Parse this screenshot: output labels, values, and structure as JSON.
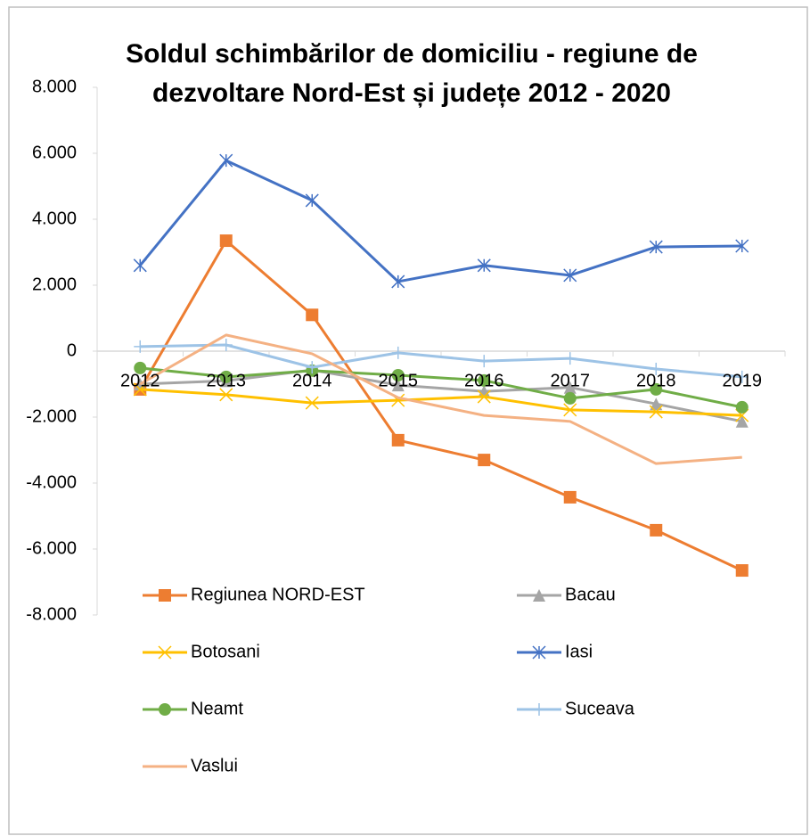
{
  "chart_data": {
    "type": "line",
    "title": [
      "Soldul schimbărilor de domiciliu - regiune de",
      "dezvoltare Nord-Est și județe 2012 - 2020"
    ],
    "categories": [
      "2012",
      "2013",
      "2014",
      "2015",
      "2016",
      "2017",
      "2018",
      "2019"
    ],
    "ylim": [
      -8000,
      8000
    ],
    "yticks": [
      {
        "value": 8000,
        "label": "8.000"
      },
      {
        "value": 6000,
        "label": "6.000"
      },
      {
        "value": 4000,
        "label": "4.000"
      },
      {
        "value": 2000,
        "label": "2.000"
      },
      0,
      {
        "value": -2000,
        "label": "-2.000"
      },
      {
        "value": -4000,
        "label": "-4.000"
      },
      {
        "value": -6000,
        "label": "-6.000"
      },
      {
        "value": -8000,
        "label": "-8.000"
      }
    ],
    "grid": false,
    "series": [
      {
        "name": "Regiunea NORD-EST",
        "color": "#ed7d31",
        "marker": "square",
        "values": [
          -1160,
          3350,
          1100,
          -2700,
          -3300,
          -4430,
          -5430,
          -6650
        ]
      },
      {
        "name": "Bacau",
        "color": "#a5a5a5",
        "marker": "triangle",
        "values": [
          -1000,
          -900,
          -570,
          -1030,
          -1220,
          -1100,
          -1600,
          -2130
        ]
      },
      {
        "name": "Botosani",
        "color": "#ffc000",
        "marker": "x",
        "values": [
          -1160,
          -1320,
          -1570,
          -1490,
          -1380,
          -1780,
          -1840,
          -1950
        ]
      },
      {
        "name": "Iasi",
        "color": "#4472c4",
        "marker": "star",
        "values": [
          2600,
          5780,
          4570,
          2110,
          2600,
          2300,
          3160,
          3190
        ]
      },
      {
        "name": "Neamt",
        "color": "#70ad47",
        "marker": "circle",
        "values": [
          -510,
          -780,
          -590,
          -730,
          -890,
          -1430,
          -1160,
          -1700
        ]
      },
      {
        "name": "Suceava",
        "color": "#9dc3e6",
        "marker": "plus",
        "values": [
          140,
          190,
          -490,
          -50,
          -300,
          -220,
          -540,
          -780
        ]
      },
      {
        "name": "Vaslui",
        "color": "#f4b183",
        "marker": "none",
        "values": [
          -1000,
          490,
          -80,
          -1410,
          -1950,
          -2130,
          -3410,
          -3220
        ]
      }
    ]
  }
}
